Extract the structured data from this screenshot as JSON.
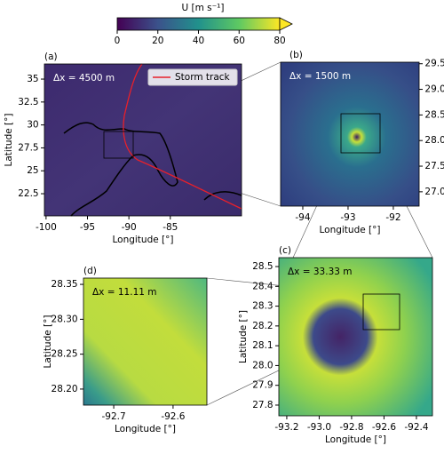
{
  "chart_data": [
    {
      "type": "colorbar",
      "title": "U [m s⁻¹]",
      "xlim": [
        0,
        80
      ],
      "xticks": [
        0,
        20,
        40,
        60,
        80
      ],
      "extend": "max",
      "colormap": "viridis"
    },
    {
      "type": "image",
      "panel": "(a)",
      "annotation": "Δx = 4500 m",
      "xlabel": "Longitude [°]",
      "ylabel": "Latitude [°]",
      "xlim": [
        -100.2,
        -76.4
      ],
      "ylim": [
        20.08,
        36.65
      ],
      "xticks": [
        -100,
        -95,
        -90,
        -85
      ],
      "yticks": [
        22.5,
        25,
        27.5,
        30,
        32.5,
        35
      ],
      "legend": "Storm track",
      "track_color": "#e8202a"
    },
    {
      "type": "image",
      "panel": "(b)",
      "annotation": "Δx = 1500 m",
      "xlabel": "Longitude [°]",
      "xlim": [
        -94.49,
        -91.43
      ],
      "ylim": [
        26.72,
        29.53
      ],
      "xticks": [
        -94,
        -93,
        -92
      ],
      "yticks": [
        {
          "value": 27,
          "label": "27.0"
        },
        27.5,
        {
          "value": 28,
          "label": "28.0"
        },
        28.5,
        {
          "value": 29,
          "label": "29.0"
        },
        29.5
      ]
    },
    {
      "type": "image",
      "panel": "(c)",
      "annotation": "Δx = 33.33 m",
      "xlabel": "Longitude [°]",
      "ylabel": "Latitude [°]",
      "xlim": [
        -93.249,
        -92.301
      ],
      "ylim": [
        27.746,
        28.545
      ],
      "xticks": [
        -93.2,
        {
          "value": -93,
          "label": "-93.0"
        },
        -92.8,
        -92.6,
        -92.4
      ],
      "yticks": [
        27.8,
        27.9,
        {
          "value": 28,
          "label": "28.0"
        },
        28.1,
        28.2,
        28.3,
        28.4,
        28.5
      ]
    },
    {
      "type": "image",
      "panel": "(d)",
      "annotation": "Δx = 11.11 m",
      "xlabel": "Longitude [°]",
      "ylabel": "Latitude [°]",
      "xlim": [
        -92.751,
        -92.543
      ],
      "ylim": [
        28.177,
        28.359
      ],
      "xticks": [
        -92.7,
        -92.6
      ],
      "yticks": [
        {
          "value": 28.2,
          "label": "28.20"
        },
        28.25,
        {
          "value": 28.3,
          "label": "28.30"
        },
        28.35
      ]
    }
  ]
}
